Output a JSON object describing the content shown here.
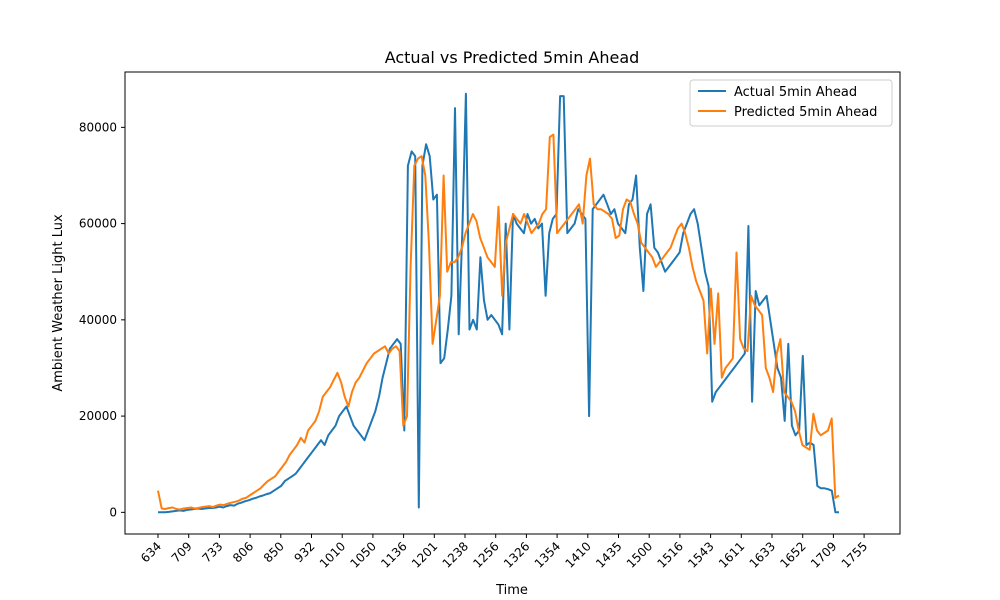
{
  "chart_data": {
    "type": "line",
    "title": "Actual vs Predicted 5min Ahead",
    "xlabel": "Time",
    "ylabel": "Ambient Weather Light Lux",
    "x_tick_labels": [
      "634",
      "709",
      "733",
      "806",
      "850",
      "932",
      "1010",
      "1050",
      "1136",
      "1201",
      "1238",
      "1256",
      "1326",
      "1354",
      "1410",
      "1435",
      "1500",
      "1516",
      "1543",
      "1611",
      "1633",
      "1652",
      "1709",
      "1755"
    ],
    "y_ticks": [
      0,
      20000,
      40000,
      60000,
      80000
    ],
    "ylim": [
      -4500,
      91500
    ],
    "legend_position": "upper right",
    "series": [
      {
        "name": "Actual 5min Ahead",
        "color": "#1f77b4",
        "values": [
          0,
          0,
          0,
          100,
          200,
          300,
          400,
          300,
          500,
          600,
          700,
          800,
          700,
          800,
          900,
          900,
          1000,
          1200,
          1000,
          1300,
          1500,
          1400,
          1800,
          2000,
          2300,
          2500,
          2800,
          3000,
          3300,
          3500,
          3800,
          4000,
          4500,
          5000,
          5500,
          6500,
          7000,
          7500,
          8000,
          9000,
          10000,
          11000,
          12000,
          13000,
          14000,
          15000,
          14000,
          16000,
          17000,
          18000,
          20000,
          21000,
          22000,
          20000,
          18000,
          17000,
          16000,
          15000,
          17000,
          19000,
          21000,
          24000,
          28000,
          31000,
          34000,
          35000,
          36000,
          35000,
          17000,
          72000,
          75000,
          74000,
          1000,
          72000,
          76500,
          74000,
          65000,
          66000,
          31000,
          32000,
          38000,
          45000,
          84000,
          37000,
          58000,
          87000,
          38000,
          40000,
          38000,
          53000,
          44000,
          40000,
          41000,
          40000,
          39000,
          37000,
          60000,
          38000,
          62000,
          60000,
          59000,
          58000,
          62000,
          60000,
          61000,
          59000,
          60000,
          45000,
          58000,
          61000,
          62000,
          86500,
          86500,
          58000,
          59000,
          60000,
          63000,
          62000,
          61000,
          20000,
          63000,
          64000,
          65000,
          66000,
          64000,
          62000,
          63000,
          60000,
          59000,
          58000,
          64000,
          65000,
          70000,
          55000,
          46000,
          62000,
          64000,
          55000,
          54000,
          52000,
          50000,
          51000,
          52000,
          53000,
          54000,
          58000,
          60000,
          62000,
          63000,
          60000,
          55000,
          50000,
          47000,
          23000,
          25000,
          26000,
          27000,
          28000,
          29000,
          30000,
          31000,
          32000,
          33000,
          59500,
          23000,
          46000,
          43000,
          44000,
          45000,
          40000,
          35000,
          30000,
          28000,
          19000,
          35000,
          18000,
          16000,
          17000,
          32500,
          14000,
          14500,
          14000,
          5500,
          5000,
          5000,
          4800,
          4500,
          0,
          0
        ]
      },
      {
        "name": "Predicted 5min Ahead",
        "color": "#ff7f0e",
        "values": [
          4500,
          800,
          700,
          900,
          1000,
          700,
          600,
          800,
          900,
          1000,
          800,
          900,
          1100,
          1200,
          1300,
          1100,
          1400,
          1600,
          1500,
          1800,
          2000,
          2200,
          2400,
          2800,
          3000,
          3500,
          4000,
          4500,
          5000,
          5800,
          6500,
          7000,
          7500,
          8500,
          9500,
          10500,
          12000,
          13000,
          14000,
          15500,
          14500,
          17000,
          18000,
          19000,
          21000,
          24000,
          25000,
          26000,
          27500,
          29000,
          27000,
          24000,
          22000,
          25000,
          27000,
          28000,
          29500,
          31000,
          32000,
          33000,
          33500,
          34000,
          34500,
          33000,
          34000,
          34500,
          33500,
          18000,
          20000,
          51000,
          72000,
          73500,
          74000,
          70000,
          56000,
          35000,
          40000,
          45000,
          70000,
          50000,
          52000,
          52000,
          53000,
          55000,
          58000,
          60000,
          62000,
          60500,
          57000,
          55000,
          53000,
          52000,
          51000,
          63500,
          45000,
          56000,
          59000,
          62000,
          61000,
          60000,
          62000,
          60000,
          58000,
          59000,
          60000,
          62000,
          63000,
          78000,
          78500,
          58000,
          59000,
          60000,
          61000,
          62000,
          63000,
          64000,
          60000,
          70000,
          73500,
          64000,
          63000,
          63000,
          62500,
          62000,
          61000,
          57000,
          57500,
          63000,
          65000,
          64500,
          62000,
          60000,
          56000,
          55000,
          54000,
          53000,
          51000,
          52000,
          53000,
          54000,
          55000,
          57000,
          59000,
          60000,
          58000,
          55000,
          51000,
          48000,
          46000,
          44000,
          33000,
          46500,
          35000,
          45500,
          28000,
          30000,
          31000,
          32000,
          54000,
          36000,
          34000,
          33500,
          45000,
          43000,
          42000,
          41000,
          30000,
          28000,
          25000,
          33000,
          36000,
          25000,
          24000,
          23000,
          21000,
          17000,
          14000,
          13500,
          13000,
          20500,
          17000,
          16000,
          16500,
          17000,
          19500,
          3000,
          3500
        ]
      }
    ]
  }
}
